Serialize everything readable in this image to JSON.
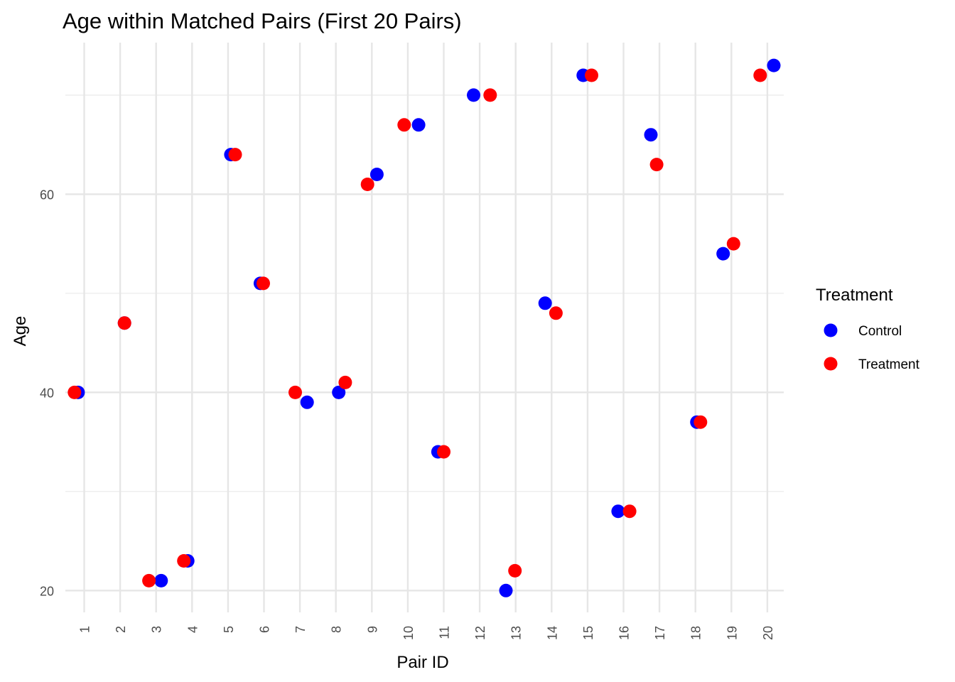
{
  "chart_data": {
    "type": "scatter",
    "title": "Age within Matched Pairs (First 20 Pairs)",
    "xlabel": "Pair ID",
    "ylabel": "Age",
    "categories": [
      "1",
      "2",
      "3",
      "4",
      "5",
      "6",
      "7",
      "8",
      "9",
      "10",
      "11",
      "12",
      "13",
      "14",
      "15",
      "16",
      "17",
      "18",
      "19",
      "20"
    ],
    "y_ticks": [
      20,
      40,
      60
    ],
    "ylim": [
      17.8,
      75.3
    ],
    "grid": true,
    "legend": {
      "title": "Treatment",
      "position": "right"
    },
    "series": [
      {
        "name": "Control",
        "color": "#0000ff",
        "points": [
          {
            "pair": "1",
            "jitter": -0.17,
            "age": 40
          },
          {
            "pair": "2",
            "jitter": 0.12,
            "age": 47
          },
          {
            "pair": "3",
            "jitter": 0.14,
            "age": 21
          },
          {
            "pair": "4",
            "jitter": -0.12,
            "age": 23
          },
          {
            "pair": "5",
            "jitter": 0.08,
            "age": 64
          },
          {
            "pair": "6",
            "jitter": -0.1,
            "age": 51
          },
          {
            "pair": "7",
            "jitter": 0.2,
            "age": 39
          },
          {
            "pair": "8",
            "jitter": 0.08,
            "age": 40
          },
          {
            "pair": "9",
            "jitter": 0.14,
            "age": 62
          },
          {
            "pair": "10",
            "jitter": 0.3,
            "age": 67
          },
          {
            "pair": "11",
            "jitter": -0.16,
            "age": 34
          },
          {
            "pair": "12",
            "jitter": -0.17,
            "age": 70
          },
          {
            "pair": "13",
            "jitter": -0.27,
            "age": 20
          },
          {
            "pair": "14",
            "jitter": -0.18,
            "age": 49
          },
          {
            "pair": "15",
            "jitter": -0.12,
            "age": 72
          },
          {
            "pair": "16",
            "jitter": -0.15,
            "age": 28
          },
          {
            "pair": "17",
            "jitter": -0.24,
            "age": 66
          },
          {
            "pair": "18",
            "jitter": 0.04,
            "age": 37
          },
          {
            "pair": "19",
            "jitter": -0.23,
            "age": 54
          },
          {
            "pair": "20",
            "jitter": 0.18,
            "age": 73
          }
        ]
      },
      {
        "name": "Treatment",
        "color": "#ff0000",
        "points": [
          {
            "pair": "1",
            "jitter": -0.27,
            "age": 40
          },
          {
            "pair": "2",
            "jitter": 0.12,
            "age": 47
          },
          {
            "pair": "3",
            "jitter": -0.2,
            "age": 21
          },
          {
            "pair": "4",
            "jitter": -0.23,
            "age": 23
          },
          {
            "pair": "5",
            "jitter": 0.2,
            "age": 64
          },
          {
            "pair": "6",
            "jitter": -0.02,
            "age": 51
          },
          {
            "pair": "7",
            "jitter": -0.13,
            "age": 40
          },
          {
            "pair": "8",
            "jitter": 0.26,
            "age": 41
          },
          {
            "pair": "9",
            "jitter": -0.12,
            "age": 61
          },
          {
            "pair": "10",
            "jitter": -0.1,
            "age": 67
          },
          {
            "pair": "11",
            "jitter": 0.0,
            "age": 34
          },
          {
            "pair": "12",
            "jitter": 0.29,
            "age": 70
          },
          {
            "pair": "13",
            "jitter": -0.02,
            "age": 22
          },
          {
            "pair": "14",
            "jitter": 0.12,
            "age": 48
          },
          {
            "pair": "15",
            "jitter": 0.11,
            "age": 72
          },
          {
            "pair": "16",
            "jitter": 0.17,
            "age": 28
          },
          {
            "pair": "17",
            "jitter": -0.08,
            "age": 63
          },
          {
            "pair": "18",
            "jitter": 0.14,
            "age": 37
          },
          {
            "pair": "19",
            "jitter": 0.06,
            "age": 55
          },
          {
            "pair": "20",
            "jitter": -0.2,
            "age": 72
          }
        ]
      }
    ]
  }
}
